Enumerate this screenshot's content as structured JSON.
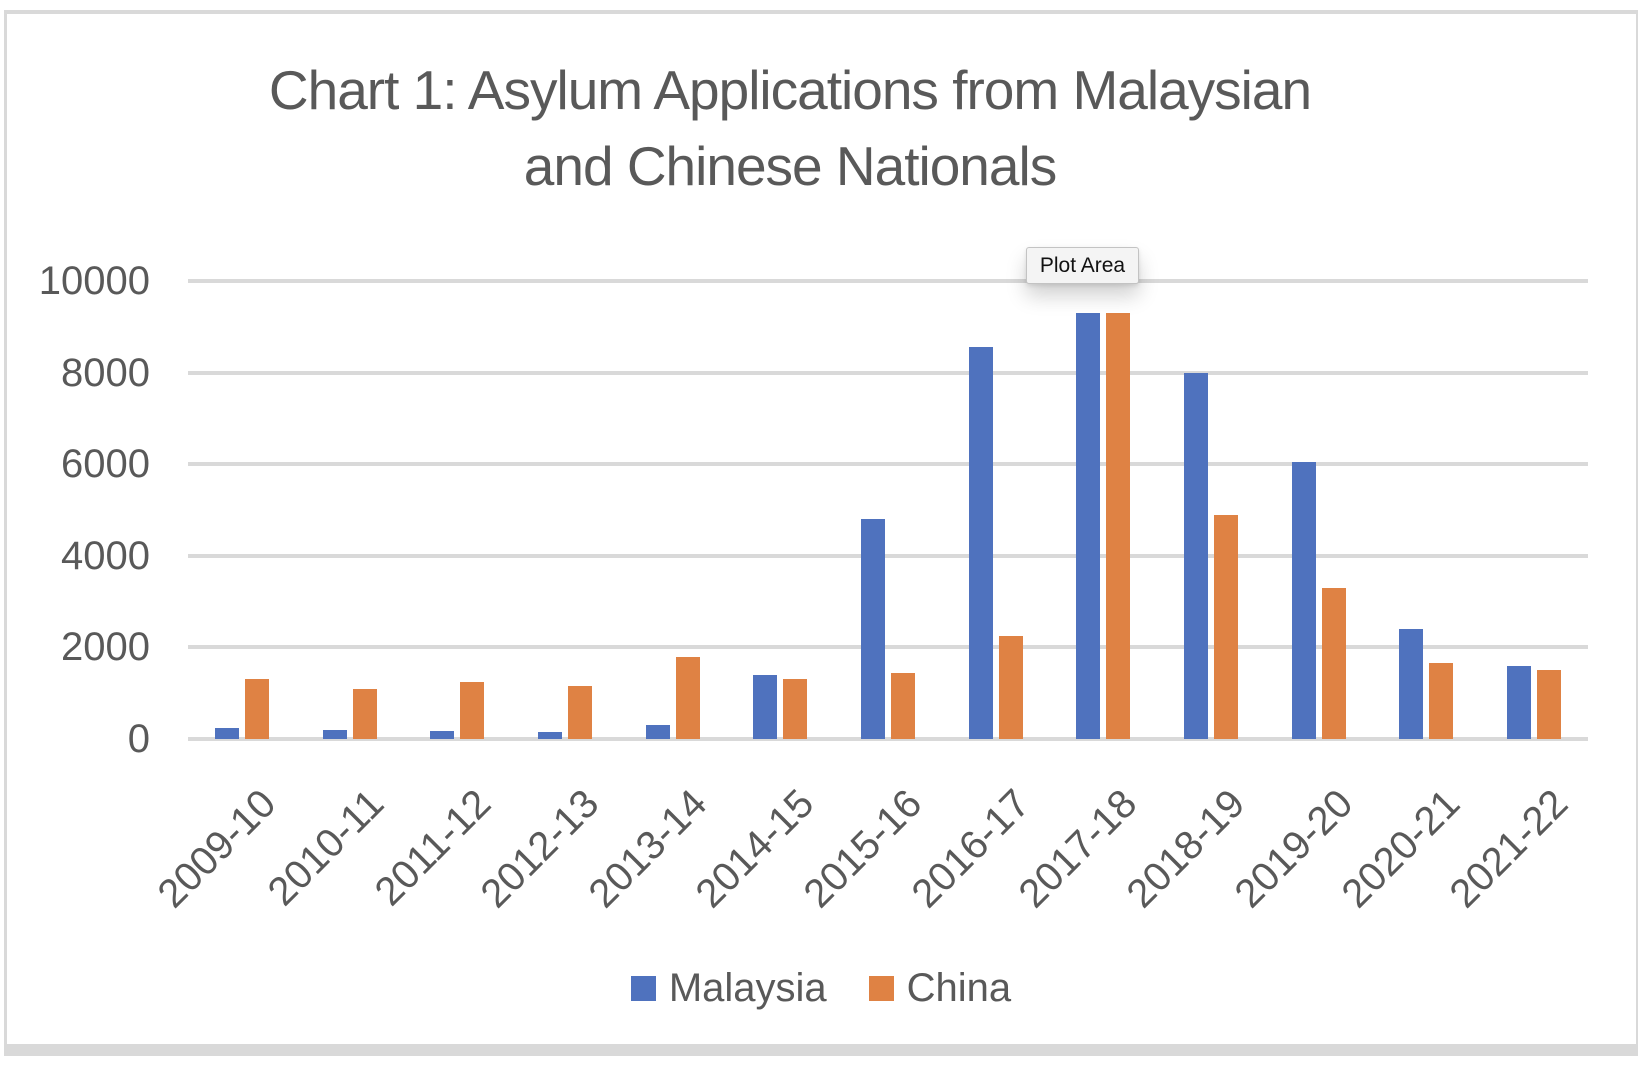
{
  "chart_data": {
    "type": "bar",
    "title": "Chart 1: Asylum Applications from Malaysian\nand Chinese Nationals",
    "categories": [
      "2009-10",
      "2010-11",
      "2011-12",
      "2012-13",
      "2013-14",
      "2014-15",
      "2015-16",
      "2016-17",
      "2017-18",
      "2018-19",
      "2019-20",
      "2020-21",
      "2021-22"
    ],
    "series": [
      {
        "name": "Malaysia",
        "color": "#4F72BE",
        "values": [
          250,
          200,
          180,
          150,
          300,
          1400,
          4800,
          8550,
          9300,
          8000,
          6050,
          2400,
          1600
        ]
      },
      {
        "name": "China",
        "color": "#DF8244",
        "values": [
          1300,
          1100,
          1250,
          1150,
          1800,
          1300,
          1450,
          2250,
          9300,
          4900,
          3300,
          1650,
          1500
        ]
      }
    ],
    "xlabel": "",
    "ylabel": "",
    "ylim": [
      0,
      10000
    ],
    "yticks": [
      0,
      2000,
      4000,
      6000,
      8000,
      10000
    ],
    "grid": "horizontal",
    "gridline_color": "#d9d9d9",
    "text_color": "#595959",
    "legend_position": "bottom"
  },
  "overlay": {
    "plot_area_label": "Plot Area"
  }
}
